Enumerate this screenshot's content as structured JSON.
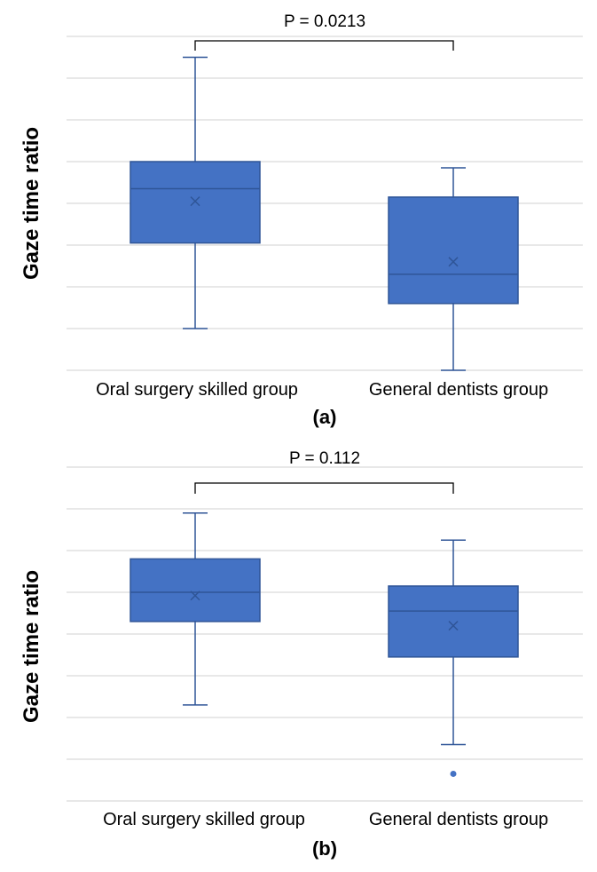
{
  "colors": {
    "box_fill": "#4472c4",
    "box_edge": "#2f5597",
    "grid": "#d9d9d9",
    "bracket": "#000000"
  },
  "chart_data": [
    {
      "type": "box",
      "panel_label": "(a)",
      "ylabel": "Gaze time ratio",
      "ylim": [
        0,
        8
      ],
      "gridlines": 9,
      "categories": [
        "Oral surgery skilled group",
        "General dentists group"
      ],
      "p_value_label": "P = 0.0213",
      "boxes": [
        {
          "name": "Oral surgery skilled group",
          "whisker_low": 1.0,
          "q1": 3.05,
          "median": 4.35,
          "q3": 5.0,
          "whisker_high": 7.5,
          "mean": 4.05,
          "outliers": []
        },
        {
          "name": "General dentists group",
          "whisker_low": 0.0,
          "q1": 1.6,
          "median": 2.3,
          "q3": 4.15,
          "whisker_high": 4.85,
          "mean": 2.6,
          "outliers": []
        }
      ]
    },
    {
      "type": "box",
      "panel_label": "(b)",
      "ylabel": "Gaze time ratio",
      "ylim": [
        0,
        8
      ],
      "gridlines": 9,
      "categories": [
        "Oral surgery skilled group",
        "General dentists group"
      ],
      "p_value_label": "P = 0.112",
      "boxes": [
        {
          "name": "Oral surgery skilled group",
          "whisker_low": 2.3,
          "q1": 4.3,
          "median": 5.0,
          "q3": 5.8,
          "whisker_high": 6.9,
          "mean": 4.92,
          "outliers": []
        },
        {
          "name": "General dentists group",
          "whisker_low": 1.35,
          "q1": 3.45,
          "median": 4.55,
          "q3": 5.15,
          "whisker_high": 6.25,
          "mean": 4.2,
          "outliers": [
            0.65
          ]
        }
      ]
    }
  ]
}
